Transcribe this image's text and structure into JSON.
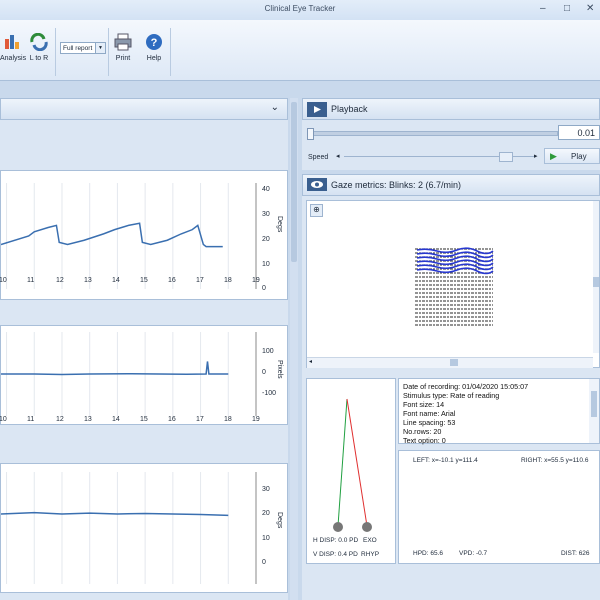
{
  "window": {
    "title": "Clinical Eye Tracker",
    "minimize": "–",
    "maximize": "□",
    "close": "✕"
  },
  "ribbon": {
    "analysis_label": "Analysis",
    "l_to_r_label": "L to R",
    "report_combo_value": "Full report",
    "print_label": "Print",
    "help_label": "Help"
  },
  "left_panel": {
    "collapse_glyph": "⌄"
  },
  "charts": {
    "top": {
      "y_ticks": [
        "40",
        "30",
        "20",
        "10",
        "0"
      ],
      "y_label": "Degs",
      "x_ticks": [
        "10",
        "11",
        "12",
        "13",
        "14",
        "15",
        "16",
        "17",
        "18",
        "19"
      ]
    },
    "middle": {
      "y_ticks": [
        "100",
        "0",
        "-100"
      ],
      "y_label": "Pixels",
      "x_ticks": [
        "10",
        "11",
        "12",
        "13",
        "14",
        "15",
        "16",
        "17",
        "18",
        "19"
      ]
    },
    "bottom": {
      "y_ticks": [
        "30",
        "20",
        "10",
        "0"
      ],
      "y_label": "Degs",
      "x_ticks": [
        "10",
        "11",
        "12",
        "13",
        "14",
        "15",
        "16",
        "17",
        "18",
        "19"
      ]
    }
  },
  "chart_data": [
    {
      "type": "line",
      "x": [
        9.8,
        10.8,
        11.0,
        11.5,
        11.8,
        11.9,
        12.2,
        12.8,
        13.5,
        13.9,
        14.4,
        14.8,
        14.9,
        15.2,
        15.8,
        16.3,
        16.7,
        16.9,
        17.1,
        17.2,
        17.4,
        17.8
      ],
      "y": [
        16,
        20,
        22,
        24,
        25,
        17,
        16,
        18,
        21,
        23,
        25,
        26,
        17,
        16,
        18,
        21,
        23,
        25,
        16,
        15,
        15,
        15
      ],
      "ylim": [
        -5,
        45
      ],
      "xlim": [
        9.8,
        19
      ],
      "ylabel": "Degs"
    },
    {
      "type": "line",
      "x": [
        9.8,
        11,
        12,
        13,
        14.5,
        15.5,
        16.5,
        17.2,
        17.25,
        17.3,
        17.4,
        18
      ],
      "y": [
        0,
        0,
        -2,
        0,
        1,
        0,
        -1,
        0,
        45,
        0,
        0,
        0
      ],
      "ylim": [
        -150,
        150
      ],
      "xlim": [
        9.8,
        19
      ],
      "ylabel": "Pixels"
    },
    {
      "type": "line",
      "x": [
        9.8,
        11,
        12,
        13,
        14,
        15,
        16,
        17,
        18
      ],
      "y": [
        20,
        20.5,
        20,
        20.3,
        20,
        20.2,
        20,
        19.8,
        19.5
      ],
      "ylim": [
        -5,
        35
      ],
      "xlim": [
        9.8,
        19
      ],
      "ylabel": "Degs"
    }
  ],
  "playback": {
    "title": "Playback",
    "time_value": "0.01",
    "speed_label": "Speed",
    "play_label": "Play"
  },
  "gaze": {
    "title": "Gaze metrics:  Blinks: 2 (6.7/min)"
  },
  "recording": {
    "lines": [
      "Date of recording: 01/04/2020 15:05:07",
      "Stimulus type: Rate of reading",
      "Font size: 14",
      "Font name: Arial",
      "Line spacing: 53",
      "No.rows: 20",
      "Text option: 0"
    ]
  },
  "disparity": {
    "h_disp": "H DISP: 0.0 PD",
    "eko": "EXO",
    "v_disp": "V DISP: 0.4 PD",
    "rhyp": "RHYP"
  },
  "positions": {
    "left": "LEFT: x=-10.1 y=111.4",
    "right": "RIGHT: x=55.5 y=110.6",
    "hpd": "HPD: 65.6",
    "vpd": "VPD: -0.7",
    "dist": "DIST: 626"
  },
  "colors": {
    "accent": "#3a6fb0",
    "trace": "#3a6fb0",
    "red_line": "#e03030",
    "green_line": "#20a040"
  }
}
